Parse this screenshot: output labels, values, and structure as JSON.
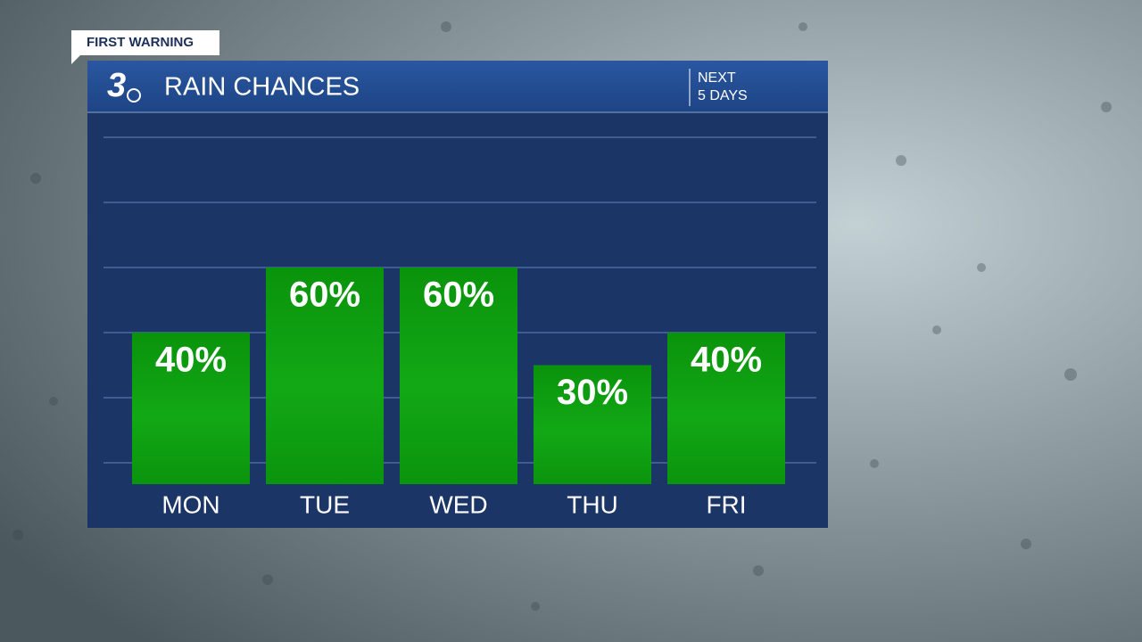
{
  "chart_data": {
    "type": "bar",
    "badge": "FIRST WARNING",
    "logo": "3",
    "title": "RAIN CHANCES",
    "subtitle_lines": [
      "NEXT",
      "5 DAYS"
    ],
    "categories": [
      "MON",
      "TUE",
      "WED",
      "THU",
      "FRI"
    ],
    "values": [
      40,
      60,
      60,
      30,
      40
    ],
    "value_labels": [
      "40%",
      "60%",
      "60%",
      "30%",
      "40%"
    ],
    "color": "#0f9e12",
    "ylim": [
      0,
      100
    ],
    "yticks": [
      0,
      20,
      40,
      60,
      80,
      100
    ],
    "grid": true
  }
}
